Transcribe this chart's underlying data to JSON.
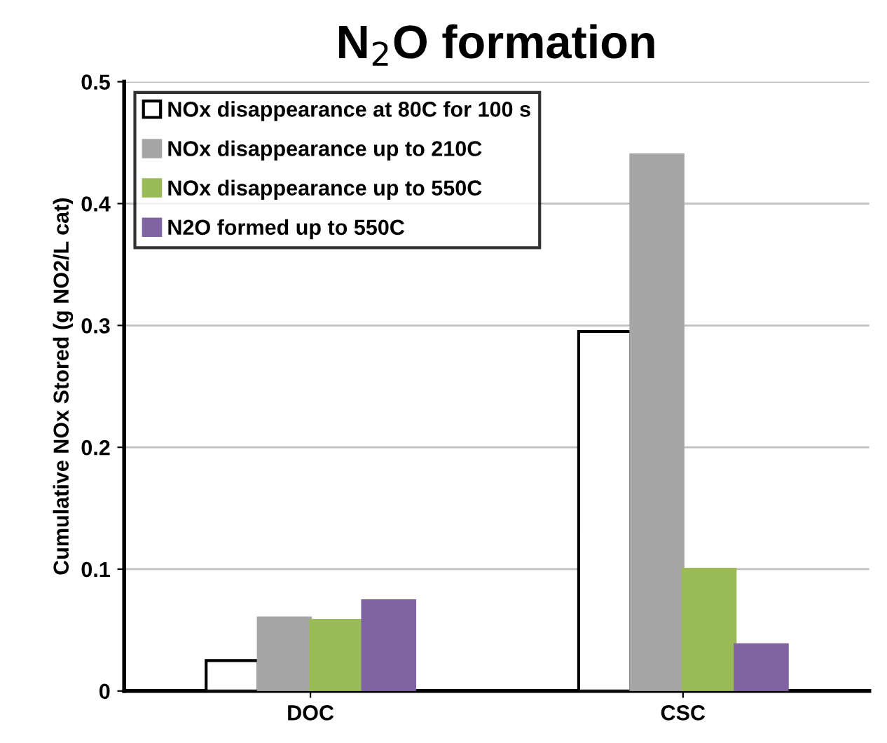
{
  "chart_data": {
    "type": "bar",
    "title": "N$_{2}$O formation",
    "ylabel": "Cumulative NOx Stored (g NO2/L cat)",
    "categories": [
      "DOC",
      "CSC"
    ],
    "series": [
      {
        "name": "NOx disappearance at 80C for 100 s",
        "color": "#ffffff",
        "values": [
          0.025,
          0.295
        ]
      },
      {
        "name": "NOx disappearance up to 210C",
        "color": "#a6a6a6",
        "values": [
          0.06,
          0.44
        ]
      },
      {
        "name": "NOx disappearance up to 550C",
        "color": "#9bbb59",
        "values": [
          0.058,
          0.1
        ]
      },
      {
        "name": "N2O formed up to 550C",
        "color": "#8064a2",
        "values": [
          0.074,
          0.038
        ]
      }
    ],
    "ylim": [
      0,
      0.5
    ],
    "yticks": [
      {
        "value": 0,
        "label": "0"
      },
      0.1,
      0.2,
      0.3,
      0.4,
      0.5
    ],
    "grid": "y",
    "legend": "top left"
  }
}
